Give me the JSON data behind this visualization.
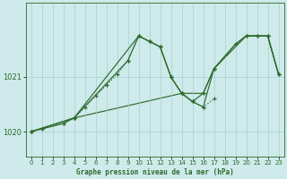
{
  "title": "Graphe pression niveau de la mer (hPa)",
  "bg_color": "#ceeaea",
  "grid_color": "#aacfcf",
  "line_color": "#2d6a2d",
  "xlim": [
    -0.5,
    23.5
  ],
  "ylim": [
    1019.55,
    1022.35
  ],
  "yticks": [
    1020,
    1021
  ],
  "xticks": [
    0,
    1,
    2,
    3,
    4,
    5,
    6,
    7,
    8,
    9,
    10,
    11,
    12,
    13,
    14,
    15,
    16,
    17,
    18,
    19,
    20,
    21,
    22,
    23
  ],
  "series1_x": [
    0,
    1,
    3,
    4,
    5,
    6,
    7,
    8,
    9,
    10,
    11,
    12,
    13,
    14,
    15,
    16,
    17
  ],
  "series1_y": [
    1020.0,
    1020.05,
    1020.15,
    1020.25,
    1020.45,
    1020.65,
    1020.85,
    1021.05,
    1021.3,
    1021.75,
    1021.65,
    1021.55,
    1021.0,
    1020.7,
    1020.55,
    1020.45,
    1020.6
  ],
  "series2_x": [
    0,
    1,
    3,
    4,
    9,
    10,
    11,
    12,
    13,
    14,
    15,
    16,
    17,
    19,
    20,
    21,
    22,
    23
  ],
  "series2_y": [
    1020.0,
    1020.05,
    1020.15,
    1020.25,
    1021.3,
    1021.75,
    1021.65,
    1021.55,
    1021.0,
    1020.7,
    1020.55,
    1020.45,
    1021.15,
    1021.6,
    1021.75,
    1021.75,
    1021.75,
    1021.05
  ],
  "series3_x": [
    0,
    4,
    10,
    11,
    12,
    13,
    14,
    15,
    16,
    17,
    19,
    20,
    21,
    22,
    23
  ],
  "series3_y": [
    1020.0,
    1020.25,
    1021.75,
    1021.65,
    1021.55,
    1021.0,
    1020.7,
    1020.55,
    1020.7,
    1021.15,
    1021.6,
    1021.75,
    1021.75,
    1021.75,
    1021.05
  ],
  "series4_x": [
    0,
    4,
    14,
    16,
    17,
    20,
    21,
    22,
    23
  ],
  "series4_y": [
    1020.0,
    1020.25,
    1020.7,
    1020.7,
    1021.15,
    1021.75,
    1021.75,
    1021.75,
    1021.05
  ]
}
